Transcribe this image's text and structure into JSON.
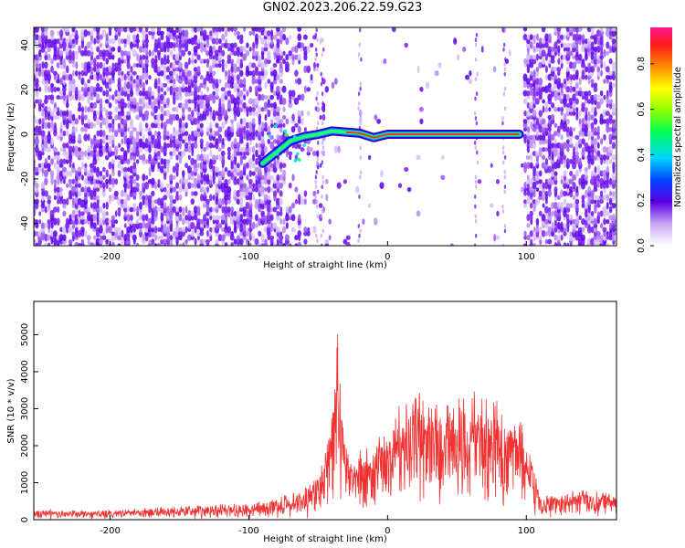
{
  "title": "GN02.2023.206.22.59.G23",
  "chart_data": [
    {
      "type": "heatmap",
      "xlabel": "Height of straight line (km)",
      "ylabel": "Frequency (Hz)",
      "xlim": [
        -255,
        165
      ],
      "ylim": [
        -50,
        48
      ],
      "xticks": [
        -200,
        -100,
        0,
        100
      ],
      "yticks": [
        -40,
        -20,
        0,
        20,
        40
      ],
      "colorbar": {
        "label": "Normalized spectral amplitude",
        "range": [
          0.0,
          0.96
        ],
        "ticks": [
          0.0,
          0.2,
          0.4,
          0.6,
          0.8
        ]
      },
      "signal_track": [
        {
          "x": -90,
          "y": -13
        },
        {
          "x": -80,
          "y": -8
        },
        {
          "x": -70,
          "y": -3
        },
        {
          "x": -60,
          "y": -1
        },
        {
          "x": -50,
          "y": 0
        },
        {
          "x": -40,
          "y": 1.5
        },
        {
          "x": -30,
          "y": 1
        },
        {
          "x": -20,
          "y": 0.5
        },
        {
          "x": -10,
          "y": -1.5
        },
        {
          "x": 0,
          "y": 0
        },
        {
          "x": 50,
          "y": 0
        },
        {
          "x": 95,
          "y": 0
        }
      ],
      "grid": false
    },
    {
      "type": "line",
      "xlabel": "Height of straight line (km)",
      "ylabel": "SNR (10 * v/v)",
      "xlim": [
        -255,
        165
      ],
      "ylim": [
        0,
        5900
      ],
      "xticks": [
        -200,
        -100,
        0,
        100
      ],
      "yticks": [
        0,
        1000,
        2000,
        3000,
        4000,
        5000
      ],
      "series": [
        {
          "color": "#f03232",
          "x": [
            -255,
            -220,
            -200,
            -180,
            -160,
            -140,
            -120,
            -100,
            -90,
            -80,
            -70,
            -60,
            -50,
            -45,
            -40,
            -36,
            -34,
            -30,
            -25,
            -20,
            -15,
            -10,
            -5,
            0,
            5,
            10,
            15,
            20,
            25,
            30,
            40,
            50,
            60,
            70,
            80,
            90,
            95,
            100,
            105,
            110,
            120,
            130,
            140,
            150,
            165
          ],
          "y": [
            250,
            230,
            240,
            280,
            320,
            350,
            380,
            420,
            480,
            540,
            660,
            800,
            1100,
            1800,
            2600,
            4800,
            3600,
            2000,
            1500,
            1800,
            1900,
            2000,
            2300,
            2300,
            2600,
            2900,
            2900,
            3200,
            3400,
            3200,
            3000,
            3100,
            3400,
            3200,
            2900,
            2700,
            2600,
            1900,
            1500,
            600,
            650,
            720,
            780,
            700,
            650
          ]
        }
      ],
      "grid": false
    }
  ]
}
